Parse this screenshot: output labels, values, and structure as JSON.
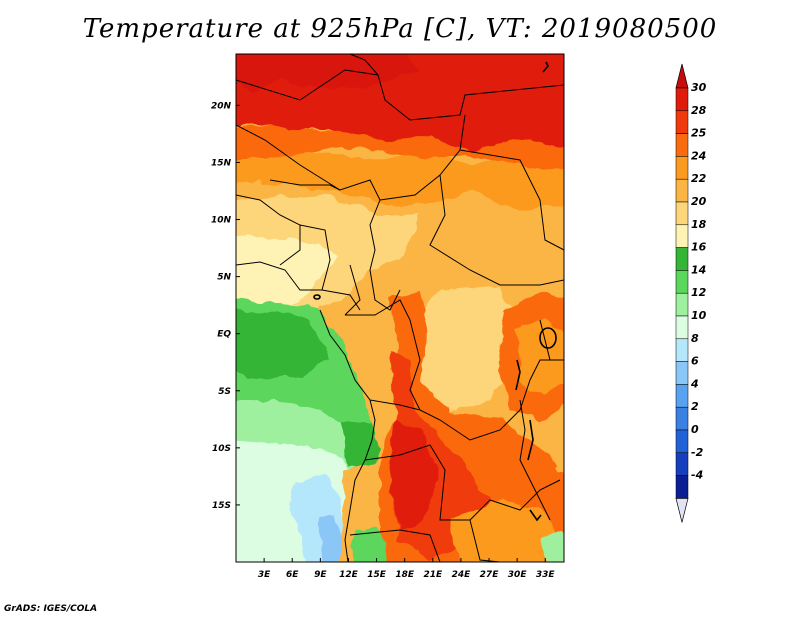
{
  "title": "Temperature at 925hPa [C], VT: 2019080500",
  "credit": "GrADS: IGES/COLA",
  "map": {
    "lon_range": [
      0,
      35
    ],
    "lat_range": [
      -20,
      24.5
    ],
    "lon_ticks": [
      {
        "value": 3,
        "label": "3E"
      },
      {
        "value": 6,
        "label": "6E"
      },
      {
        "value": 9,
        "label": "9E"
      },
      {
        "value": 12,
        "label": "12E"
      },
      {
        "value": 15,
        "label": "15E"
      },
      {
        "value": 18,
        "label": "18E"
      },
      {
        "value": 21,
        "label": "21E"
      },
      {
        "value": 24,
        "label": "24E"
      },
      {
        "value": 27,
        "label": "27E"
      },
      {
        "value": 30,
        "label": "30E"
      },
      {
        "value": 33,
        "label": "33E"
      }
    ],
    "lat_ticks": [
      {
        "value": 20,
        "label": "20N"
      },
      {
        "value": 15,
        "label": "15N"
      },
      {
        "value": 10,
        "label": "10N"
      },
      {
        "value": 5,
        "label": "5N"
      },
      {
        "value": 0,
        "label": "EQ"
      },
      {
        "value": -5,
        "label": "5S"
      },
      {
        "value": -10,
        "label": "10S"
      },
      {
        "value": -15,
        "label": "15S"
      }
    ]
  },
  "colorbar": {
    "levels": [
      {
        "label": "30",
        "color": "#e01b0c"
      },
      {
        "label": "28",
        "color": "#f03a0b"
      },
      {
        "label": "25",
        "color": "#fa6a10"
      },
      {
        "label": "24",
        "color": "#fb9a1e"
      },
      {
        "label": "22",
        "color": "#fbb545"
      },
      {
        "label": "20",
        "color": "#fdd57a"
      },
      {
        "label": "18",
        "color": "#fef3b4"
      },
      {
        "label": "16",
        "color": "#35b535"
      },
      {
        "label": "14",
        "color": "#5cd65c"
      },
      {
        "label": "12",
        "color": "#9ef09e"
      },
      {
        "label": "10",
        "color": "#dcfde2"
      },
      {
        "label": "8",
        "color": "#b4e7fc"
      },
      {
        "label": "6",
        "color": "#8ac6f6"
      },
      {
        "label": "4",
        "color": "#58a3ef"
      },
      {
        "label": "2",
        "color": "#3b81e3"
      },
      {
        "label": "0",
        "color": "#2262d6"
      },
      {
        "label": "-2",
        "color": "#153fbd"
      },
      {
        "label": "-4",
        "color": "#0a1f93"
      }
    ],
    "top_color": "#c80b0b",
    "bottom_color": "#e2e2f5"
  }
}
